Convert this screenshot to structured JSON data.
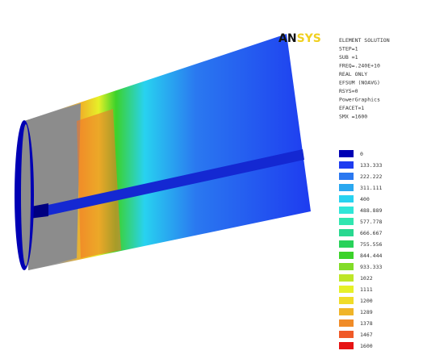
{
  "logo": {
    "first": "AN",
    "second": "SYS"
  },
  "info": [
    "ELEMENT SOLUTION",
    "STEP=1",
    "SUB =1",
    "FREQ=.240E+10",
    "REAL ONLY",
    "EFSUM    (NOAVG)",
    "RSYS=0",
    "PowerGraphics",
    "EFACET=1",
    "SMX =1600"
  ],
  "legend": [
    {
      "label": "0",
      "color": "#0000b4"
    },
    {
      "label": "133.333",
      "color": "#1e3cf0"
    },
    {
      "label": "222.222",
      "color": "#2a78f0"
    },
    {
      "label": "311.111",
      "color": "#2aa8f0"
    },
    {
      "label": "400",
      "color": "#28d2f0"
    },
    {
      "label": "488.889",
      "color": "#30e6d8"
    },
    {
      "label": "577.778",
      "color": "#30e6b0"
    },
    {
      "label": "666.667",
      "color": "#28d890"
    },
    {
      "label": "755.556",
      "color": "#28d25a"
    },
    {
      "label": "844.444",
      "color": "#3cd22a"
    },
    {
      "label": "933.333",
      "color": "#82dc28"
    },
    {
      "label": "1022",
      "color": "#bee628"
    },
    {
      "label": "1111",
      "color": "#e6f028"
    },
    {
      "label": "1200",
      "color": "#f0dc28"
    },
    {
      "label": "1289",
      "color": "#f0b428"
    },
    {
      "label": "1378",
      "color": "#f08c28"
    },
    {
      "label": "1467",
      "color": "#f05a28"
    },
    {
      "label": "1600",
      "color": "#e61414"
    }
  ]
}
